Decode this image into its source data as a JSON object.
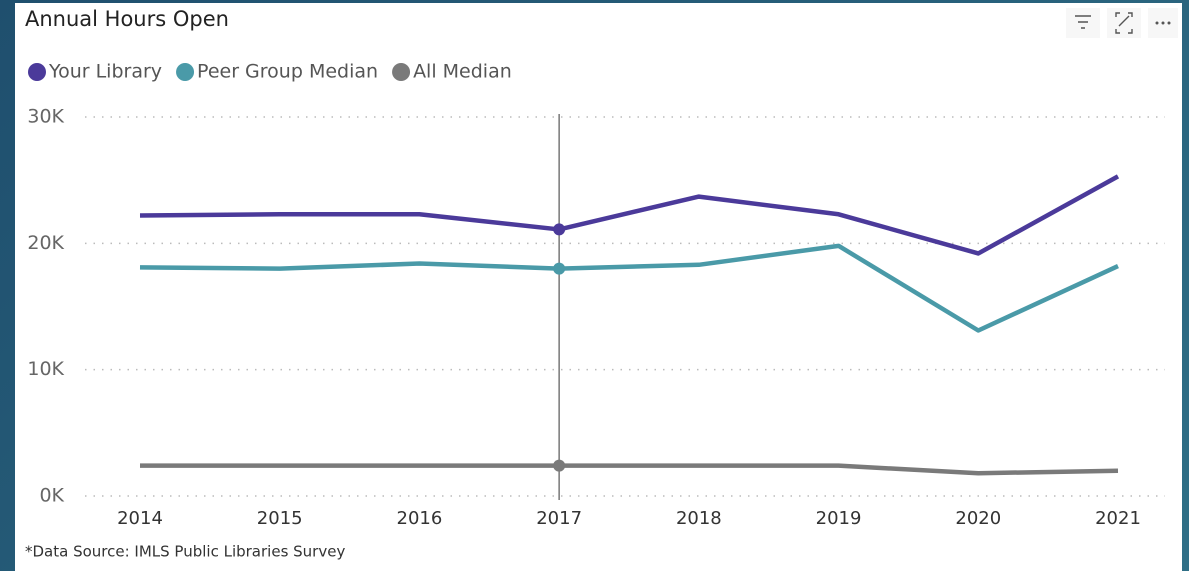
{
  "chart_data": {
    "type": "line",
    "title": "Annual Hours Open",
    "categories": [
      "2014",
      "2015",
      "2016",
      "2017",
      "2018",
      "2019",
      "2020",
      "2021"
    ],
    "series": [
      {
        "name": "Your Library",
        "color": "#4b3a9a",
        "values": [
          22200,
          22300,
          22300,
          21100,
          23700,
          22300,
          19200,
          25300
        ]
      },
      {
        "name": "Peer Group Median",
        "color": "#4a9aa8",
        "values": [
          18100,
          18000,
          18400,
          18000,
          18300,
          19800,
          13100,
          18200
        ]
      },
      {
        "name": "All Median",
        "color": "#7a7a7a",
        "values": [
          2400,
          2400,
          2400,
          2400,
          2400,
          2400,
          1800,
          2000
        ]
      }
    ],
    "ylim": [
      0,
      30000
    ],
    "yticks": [
      {
        "value": 0,
        "label": "0K"
      },
      {
        "value": 10000,
        "label": "10K"
      },
      {
        "value": 20000,
        "label": "20K"
      },
      {
        "value": 30000,
        "label": "30K"
      }
    ],
    "grid": true,
    "source": "*Data Source: IMLS Public Libraries Survey"
  }
}
